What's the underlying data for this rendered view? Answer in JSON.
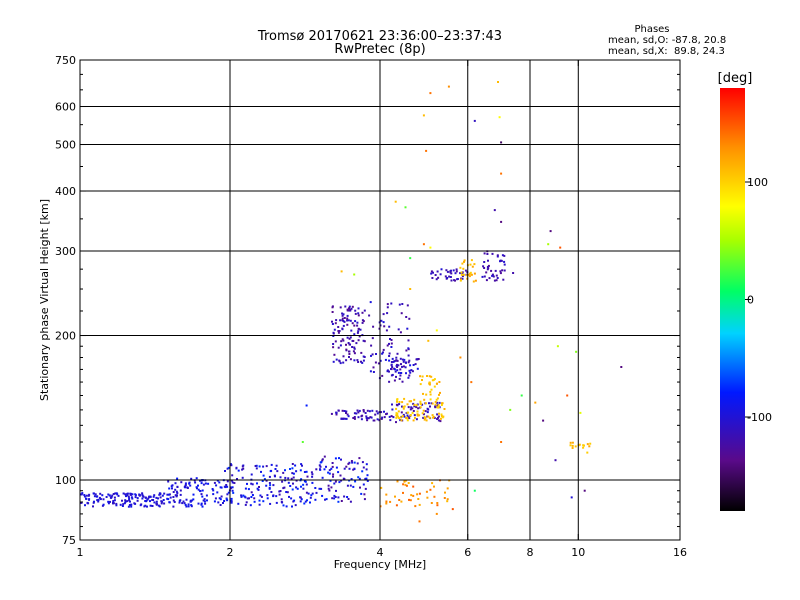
{
  "chart_data": {
    "type": "scatter",
    "title": "Tromsø 20170621 23:36:00–23:37:43",
    "subtitle": "RwPretec (8p)",
    "xlabel": "Frequency [MHz]",
    "ylabel": "Stationary phase Virtual Height [km]",
    "x_scale": "log",
    "y_scale": "log",
    "xlim": [
      1,
      16
    ],
    "ylim": [
      75,
      750
    ],
    "x_ticks": [
      1,
      2,
      4,
      6,
      8,
      10,
      16
    ],
    "x_tick_labels": [
      "1",
      "2",
      "4",
      "6",
      "8",
      "10",
      "16"
    ],
    "y_ticks": [
      75,
      100,
      200,
      300,
      400,
      500,
      600,
      750
    ],
    "y_tick_labels": [
      "75",
      "100",
      "200",
      "300",
      "400",
      "500",
      "600",
      "750"
    ],
    "grid": true,
    "annotation": {
      "heading": "Phases",
      "line1": "mean, sd,O: -87.8, 20.8",
      "line2": "mean, sd,X:  89.8, 24.3"
    },
    "colorbar": {
      "label": "[deg]",
      "min": -180,
      "max": 180,
      "ticks": [
        100,
        0,
        -100
      ],
      "tick_labels": [
        "100",
        "0",
        "-100"
      ]
    },
    "clusters": [
      {
        "x": [
          1.0,
          1.5
        ],
        "y": [
          88,
          94
        ],
        "phase": [
          -110,
          -90
        ],
        "n": 150
      },
      {
        "x": [
          1.5,
          1.95
        ],
        "y": [
          88,
          101
        ],
        "phase": [
          -110,
          -80
        ],
        "n": 110
      },
      {
        "x": [
          1.95,
          3.0
        ],
        "y": [
          88,
          108
        ],
        "phase": [
          -120,
          -70
        ],
        "n": 180
      },
      {
        "x": [
          3.0,
          3.8
        ],
        "y": [
          90,
          112
        ],
        "phase": [
          -130,
          -70
        ],
        "n": 90
      },
      {
        "x": [
          3.2,
          3.75
        ],
        "y": [
          175,
          230
        ],
        "phase": [
          -135,
          -100
        ],
        "n": 120
      },
      {
        "x": [
          3.2,
          4.2
        ],
        "y": [
          133,
          140
        ],
        "phase": [
          -130,
          -100
        ],
        "n": 60
      },
      {
        "x": [
          3.8,
          4.6
        ],
        "y": [
          160,
          235
        ],
        "phase": [
          -130,
          -95
        ],
        "n": 70
      },
      {
        "x": [
          4.1,
          4.8
        ],
        "y": [
          165,
          180
        ],
        "phase": [
          -130,
          -90
        ],
        "n": 50
      },
      {
        "x": [
          4.2,
          5.3
        ],
        "y": [
          132,
          145
        ],
        "phase": [
          -135,
          -100
        ],
        "n": 60
      },
      {
        "x": [
          4.3,
          5.4
        ],
        "y": [
          133,
          148
        ],
        "phase": [
          95,
          115
        ],
        "n": 80
      },
      {
        "x": [
          4.8,
          5.3
        ],
        "y": [
          150,
          165
        ],
        "phase": [
          95,
          120
        ],
        "n": 25
      },
      {
        "x": [
          4.0,
          5.6
        ],
        "y": [
          88,
          100
        ],
        "phase": [
          110,
          150
        ],
        "n": 45
      },
      {
        "x": [
          5.0,
          6.0
        ],
        "y": [
          260,
          275
        ],
        "phase": [
          -130,
          -100
        ],
        "n": 40
      },
      {
        "x": [
          5.8,
          6.4
        ],
        "y": [
          258,
          290
        ],
        "phase": [
          100,
          125
        ],
        "n": 25
      },
      {
        "x": [
          6.4,
          7.2
        ],
        "y": [
          260,
          300
        ],
        "phase": [
          -130,
          -100
        ],
        "n": 40
      },
      {
        "x": [
          9.6,
          10.6
        ],
        "y": [
          114,
          120
        ],
        "phase": [
          100,
          120
        ],
        "n": 15
      }
    ],
    "points": [
      {
        "x": 3.35,
        "y": 272,
        "phase": 110
      },
      {
        "x": 3.55,
        "y": 268,
        "phase": 50
      },
      {
        "x": 4.3,
        "y": 380,
        "phase": 110
      },
      {
        "x": 4.5,
        "y": 370,
        "phase": 30
      },
      {
        "x": 4.9,
        "y": 575,
        "phase": 110
      },
      {
        "x": 4.95,
        "y": 485,
        "phase": 140
      },
      {
        "x": 5.05,
        "y": 640,
        "phase": 140
      },
      {
        "x": 5.5,
        "y": 660,
        "phase": 130
      },
      {
        "x": 6.2,
        "y": 560,
        "phase": -110
      },
      {
        "x": 6.9,
        "y": 675,
        "phase": 110
      },
      {
        "x": 6.95,
        "y": 570,
        "phase": 80
      },
      {
        "x": 7.0,
        "y": 505,
        "phase": -150
      },
      {
        "x": 7.0,
        "y": 435,
        "phase": 140
      },
      {
        "x": 6.8,
        "y": 365,
        "phase": -120
      },
      {
        "x": 7.0,
        "y": 345,
        "phase": -140
      },
      {
        "x": 8.8,
        "y": 330,
        "phase": -140
      },
      {
        "x": 9.2,
        "y": 305,
        "phase": 150
      },
      {
        "x": 8.7,
        "y": 310,
        "phase": 50
      },
      {
        "x": 7.4,
        "y": 270,
        "phase": -120
      },
      {
        "x": 4.9,
        "y": 310,
        "phase": 140
      },
      {
        "x": 5.05,
        "y": 305,
        "phase": 80
      },
      {
        "x": 4.6,
        "y": 290,
        "phase": 20
      },
      {
        "x": 4.6,
        "y": 250,
        "phase": 110
      },
      {
        "x": 2.85,
        "y": 143,
        "phase": -80
      },
      {
        "x": 2.8,
        "y": 120,
        "phase": 30
      },
      {
        "x": 7.3,
        "y": 140,
        "phase": 40
      },
      {
        "x": 7.7,
        "y": 150,
        "phase": 20
      },
      {
        "x": 8.2,
        "y": 145,
        "phase": 120
      },
      {
        "x": 8.5,
        "y": 133,
        "phase": -140
      },
      {
        "x": 9.1,
        "y": 190,
        "phase": 60
      },
      {
        "x": 9.9,
        "y": 185,
        "phase": 40
      },
      {
        "x": 12.2,
        "y": 172,
        "phase": -140
      },
      {
        "x": 9.5,
        "y": 150,
        "phase": 150
      },
      {
        "x": 10.1,
        "y": 138,
        "phase": 70
      },
      {
        "x": 7.0,
        "y": 120,
        "phase": 140
      },
      {
        "x": 9.0,
        "y": 110,
        "phase": -120
      },
      {
        "x": 10.3,
        "y": 95,
        "phase": -140
      },
      {
        "x": 9.7,
        "y": 92,
        "phase": -100
      },
      {
        "x": 6.2,
        "y": 95,
        "phase": 10
      },
      {
        "x": 5.2,
        "y": 85,
        "phase": 130
      },
      {
        "x": 4.8,
        "y": 82,
        "phase": 140
      },
      {
        "x": 5.6,
        "y": 87,
        "phase": 150
      },
      {
        "x": 5.0,
        "y": 195,
        "phase": 110
      },
      {
        "x": 5.2,
        "y": 205,
        "phase": 80
      },
      {
        "x": 5.8,
        "y": 180,
        "phase": 130
      },
      {
        "x": 6.1,
        "y": 160,
        "phase": 140
      }
    ]
  }
}
